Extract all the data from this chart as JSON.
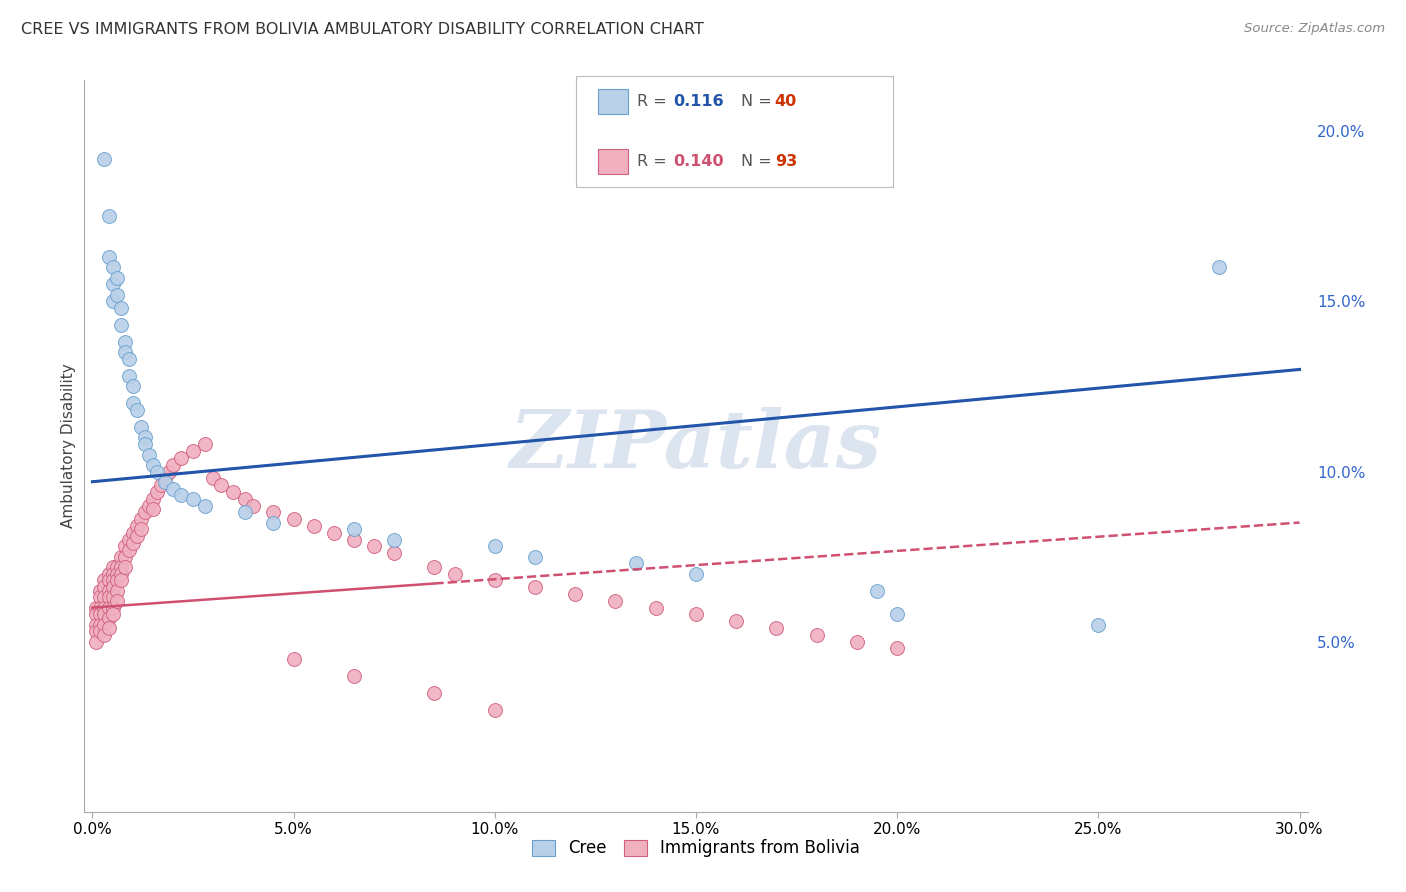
{
  "title": "CREE VS IMMIGRANTS FROM BOLIVIA AMBULATORY DISABILITY CORRELATION CHART",
  "source": "Source: ZipAtlas.com",
  "ylabel": "Ambulatory Disability",
  "xlim": [
    -0.002,
    0.302
  ],
  "ylim": [
    0.0,
    0.215
  ],
  "xticks": [
    0.0,
    0.05,
    0.1,
    0.15,
    0.2,
    0.25,
    0.3
  ],
  "xticklabels": [
    "0.0%",
    "5.0%",
    "10.0%",
    "15.0%",
    "20.0%",
    "25.0%",
    "30.0%"
  ],
  "yticks_right": [
    0.05,
    0.1,
    0.15,
    0.2
  ],
  "yticklabels_right": [
    "5.0%",
    "10.0%",
    "15.0%",
    "20.0%"
  ],
  "cree_color": "#b8d0e8",
  "cree_edge_color": "#6aa0d0",
  "bolivia_color": "#f0b0c0",
  "bolivia_edge_color": "#d06080",
  "trend_cree_color": "#2255aa",
  "trend_bolivia_color": "#d05070",
  "watermark": "ZIPatlas",
  "watermark_color": "#c5d5e5",
  "grid_color": "#cccccc",
  "background_color": "#ffffff",
  "cree_x": [
    0.003,
    0.004,
    0.004,
    0.005,
    0.005,
    0.005,
    0.006,
    0.006,
    0.007,
    0.007,
    0.008,
    0.008,
    0.009,
    0.009,
    0.01,
    0.01,
    0.011,
    0.012,
    0.013,
    0.013,
    0.014,
    0.015,
    0.016,
    0.018,
    0.02,
    0.022,
    0.025,
    0.028,
    0.038,
    0.045,
    0.065,
    0.075,
    0.1,
    0.11,
    0.135,
    0.15,
    0.195,
    0.2,
    0.25,
    0.28
  ],
  "cree_y": [
    0.192,
    0.175,
    0.163,
    0.16,
    0.155,
    0.15,
    0.157,
    0.152,
    0.148,
    0.143,
    0.138,
    0.135,
    0.133,
    0.128,
    0.125,
    0.12,
    0.118,
    0.113,
    0.11,
    0.108,
    0.105,
    0.102,
    0.1,
    0.097,
    0.095,
    0.093,
    0.092,
    0.09,
    0.088,
    0.085,
    0.083,
    0.08,
    0.078,
    0.075,
    0.073,
    0.07,
    0.065,
    0.058,
    0.055,
    0.16
  ],
  "bolivia_x": [
    0.001,
    0.001,
    0.001,
    0.001,
    0.001,
    0.002,
    0.002,
    0.002,
    0.002,
    0.002,
    0.002,
    0.003,
    0.003,
    0.003,
    0.003,
    0.003,
    0.003,
    0.003,
    0.004,
    0.004,
    0.004,
    0.004,
    0.004,
    0.004,
    0.004,
    0.005,
    0.005,
    0.005,
    0.005,
    0.005,
    0.005,
    0.005,
    0.006,
    0.006,
    0.006,
    0.006,
    0.006,
    0.007,
    0.007,
    0.007,
    0.007,
    0.008,
    0.008,
    0.008,
    0.009,
    0.009,
    0.01,
    0.01,
    0.011,
    0.011,
    0.012,
    0.012,
    0.013,
    0.014,
    0.015,
    0.015,
    0.016,
    0.017,
    0.018,
    0.019,
    0.02,
    0.022,
    0.025,
    0.028,
    0.03,
    0.032,
    0.035,
    0.038,
    0.04,
    0.045,
    0.05,
    0.055,
    0.06,
    0.065,
    0.07,
    0.075,
    0.085,
    0.09,
    0.1,
    0.11,
    0.12,
    0.13,
    0.14,
    0.15,
    0.16,
    0.17,
    0.18,
    0.19,
    0.2,
    0.05,
    0.065,
    0.085,
    0.1
  ],
  "bolivia_y": [
    0.06,
    0.058,
    0.055,
    0.053,
    0.05,
    0.065,
    0.063,
    0.06,
    0.058,
    0.055,
    0.053,
    0.068,
    0.066,
    0.063,
    0.06,
    0.058,
    0.055,
    0.052,
    0.07,
    0.068,
    0.065,
    0.063,
    0.06,
    0.057,
    0.054,
    0.072,
    0.07,
    0.068,
    0.066,
    0.063,
    0.06,
    0.058,
    0.072,
    0.07,
    0.068,
    0.065,
    0.062,
    0.075,
    0.072,
    0.07,
    0.068,
    0.078,
    0.075,
    0.072,
    0.08,
    0.077,
    0.082,
    0.079,
    0.084,
    0.081,
    0.086,
    0.083,
    0.088,
    0.09,
    0.092,
    0.089,
    0.094,
    0.096,
    0.098,
    0.1,
    0.102,
    0.104,
    0.106,
    0.108,
    0.098,
    0.096,
    0.094,
    0.092,
    0.09,
    0.088,
    0.086,
    0.084,
    0.082,
    0.08,
    0.078,
    0.076,
    0.072,
    0.07,
    0.068,
    0.066,
    0.064,
    0.062,
    0.06,
    0.058,
    0.056,
    0.054,
    0.052,
    0.05,
    0.048,
    0.045,
    0.04,
    0.035,
    0.03
  ],
  "trend_cree_start_x": 0.0,
  "trend_cree_start_y": 0.097,
  "trend_cree_end_x": 0.3,
  "trend_cree_end_y": 0.13,
  "trend_bol_start_x": 0.0,
  "trend_bol_start_y": 0.06,
  "trend_bol_end_x": 0.3,
  "trend_bol_end_y": 0.085,
  "trend_bol_solid_end_x": 0.085
}
